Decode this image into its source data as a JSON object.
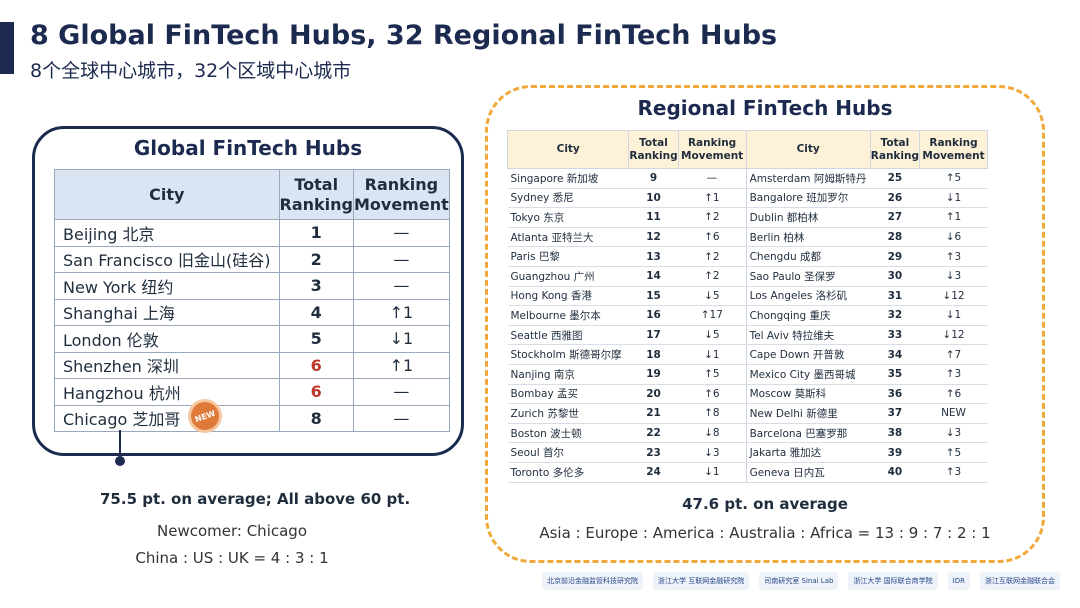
{
  "header": {
    "title_en": "8 Global FinTech Hubs, 32 Regional FinTech Hubs",
    "title_cn": "8个全球中心城市，32个区域中心城市"
  },
  "global": {
    "heading": "Global FinTech Hubs",
    "columns": [
      "City",
      "Total Ranking",
      "Ranking Movement"
    ],
    "rows": [
      {
        "city": "Beijing  北京",
        "rank": "1",
        "move": "—"
      },
      {
        "city": "San Francisco  旧金山(硅谷)",
        "rank": "2",
        "move": "—"
      },
      {
        "city": "New York   纽约",
        "rank": "3",
        "move": "—"
      },
      {
        "city": "Shanghai  上海",
        "rank": "4",
        "move": "↑1"
      },
      {
        "city": "London  伦敦",
        "rank": "5",
        "move": "↓1"
      },
      {
        "city": "Shenzhen  深圳",
        "rank": "6",
        "move": "↑1"
      },
      {
        "city": "Hangzhou  杭州",
        "rank": "6",
        "move": "—"
      },
      {
        "city": "Chicago  芝加哥",
        "rank": "8",
        "move": "—"
      }
    ],
    "new_badge": "NEW",
    "average": "75.5 pt. on average; All above 60 pt.",
    "newcomer": "Newcomer: Chicago",
    "ratio": "China : US : UK = 4 : 3 : 1",
    "highlight_color": "#c0392b"
  },
  "regional": {
    "heading": "Regional FinTech Hubs",
    "columns": [
      "City",
      "Total Ranking",
      "Ranking Movement",
      "City",
      "Total Ranking",
      "Ranking Movement"
    ],
    "rows": [
      {
        "city1": "Singapore  新加坡",
        "rank1": "9",
        "move1": "—",
        "city2": "Amsterdam  阿姆斯特丹",
        "rank2": "25",
        "move2": "↑5"
      },
      {
        "city1": "Sydney  悉尼",
        "rank1": "10",
        "move1": "↑1",
        "city2": "Bangalore  班加罗尔",
        "rank2": "26",
        "move2": "↓1"
      },
      {
        "city1": "Tokyo  东京",
        "rank1": "11",
        "move1": "↑2",
        "city2": "Dublin  都柏林",
        "rank2": "27",
        "move2": "↑1"
      },
      {
        "city1": "Atlanta  亚特兰大",
        "rank1": "12",
        "move1": "↑6",
        "city2": "Berlin  柏林",
        "rank2": "28",
        "move2": "↓6"
      },
      {
        "city1": "Paris  巴黎",
        "rank1": "13",
        "move1": "↑2",
        "city2": "Chengdu  成都",
        "rank2": "29",
        "move2": "↑3"
      },
      {
        "city1": "Guangzhou  广州",
        "rank1": "14",
        "move1": "↑2",
        "city2": "Sao Paulo  圣保罗",
        "rank2": "30",
        "move2": "↓3"
      },
      {
        "city1": "Hong Kong  香港",
        "rank1": "15",
        "move1": "↓5",
        "city2": "Los Angeles  洛杉矶",
        "rank2": "31",
        "move2": "↓12"
      },
      {
        "city1": "Melbourne  墨尔本",
        "rank1": "16",
        "move1": "↑17",
        "city2": "Chongqing  重庆",
        "rank2": "32",
        "move2": "↓1"
      },
      {
        "city1": "Seattle  西雅图",
        "rank1": "17",
        "move1": "↓5",
        "city2": "Tel Aviv  特拉维夫",
        "rank2": "33",
        "move2": "↓12"
      },
      {
        "city1": "Stockholm  斯德哥尔摩",
        "rank1": "18",
        "move1": "↓1",
        "city2": "Cape Down  开普敦",
        "rank2": "34",
        "move2": "↑7"
      },
      {
        "city1": "Nanjing   南京",
        "rank1": "19",
        "move1": "↑5",
        "city2": "Mexico City  墨西哥城",
        "rank2": "35",
        "move2": "↑3"
      },
      {
        "city1": "Bombay  孟买",
        "rank1": "20",
        "move1": "↑6",
        "city2": "Moscow  莫斯科",
        "rank2": "36",
        "move2": "↑6"
      },
      {
        "city1": "Zurich  苏黎世",
        "rank1": "21",
        "move1": "↑8",
        "city2": "New Delhi  新德里",
        "rank2": "37",
        "move2": "NEW"
      },
      {
        "city1": "Boston  波士顿",
        "rank1": "22",
        "move1": "↓8",
        "city2": "Barcelona  巴塞罗那",
        "rank2": "38",
        "move2": "↓3"
      },
      {
        "city1": "Seoul  首尔",
        "rank1": "23",
        "move1": "↓3",
        "city2": "Jakarta  雅加达",
        "rank2": "39",
        "move2": "↑5"
      },
      {
        "city1": "Toronto  多伦多",
        "rank1": "24",
        "move1": "↓1",
        "city2": "Geneva  日内瓦",
        "rank2": "40",
        "move2": "↑3"
      }
    ],
    "average": "47.6 pt. on average",
    "ratio": "Asia : Europe : America : Australia : Africa = 13 : 9 : 7 : 2 : 1"
  },
  "logos": [
    "北京前沿金融监管科技研究院",
    "浙江大学 互联网金融研究院",
    "司南研究室 Sinai Lab",
    "浙江大学 国际联合商学院",
    "IDR",
    "浙江互联网金融联合会"
  ],
  "colors": {
    "navy": "#1b2a4e",
    "orange_dashed": "#f0a93a",
    "header_blue": "#dbe4f3",
    "header_cream": "#fdf1d7"
  }
}
